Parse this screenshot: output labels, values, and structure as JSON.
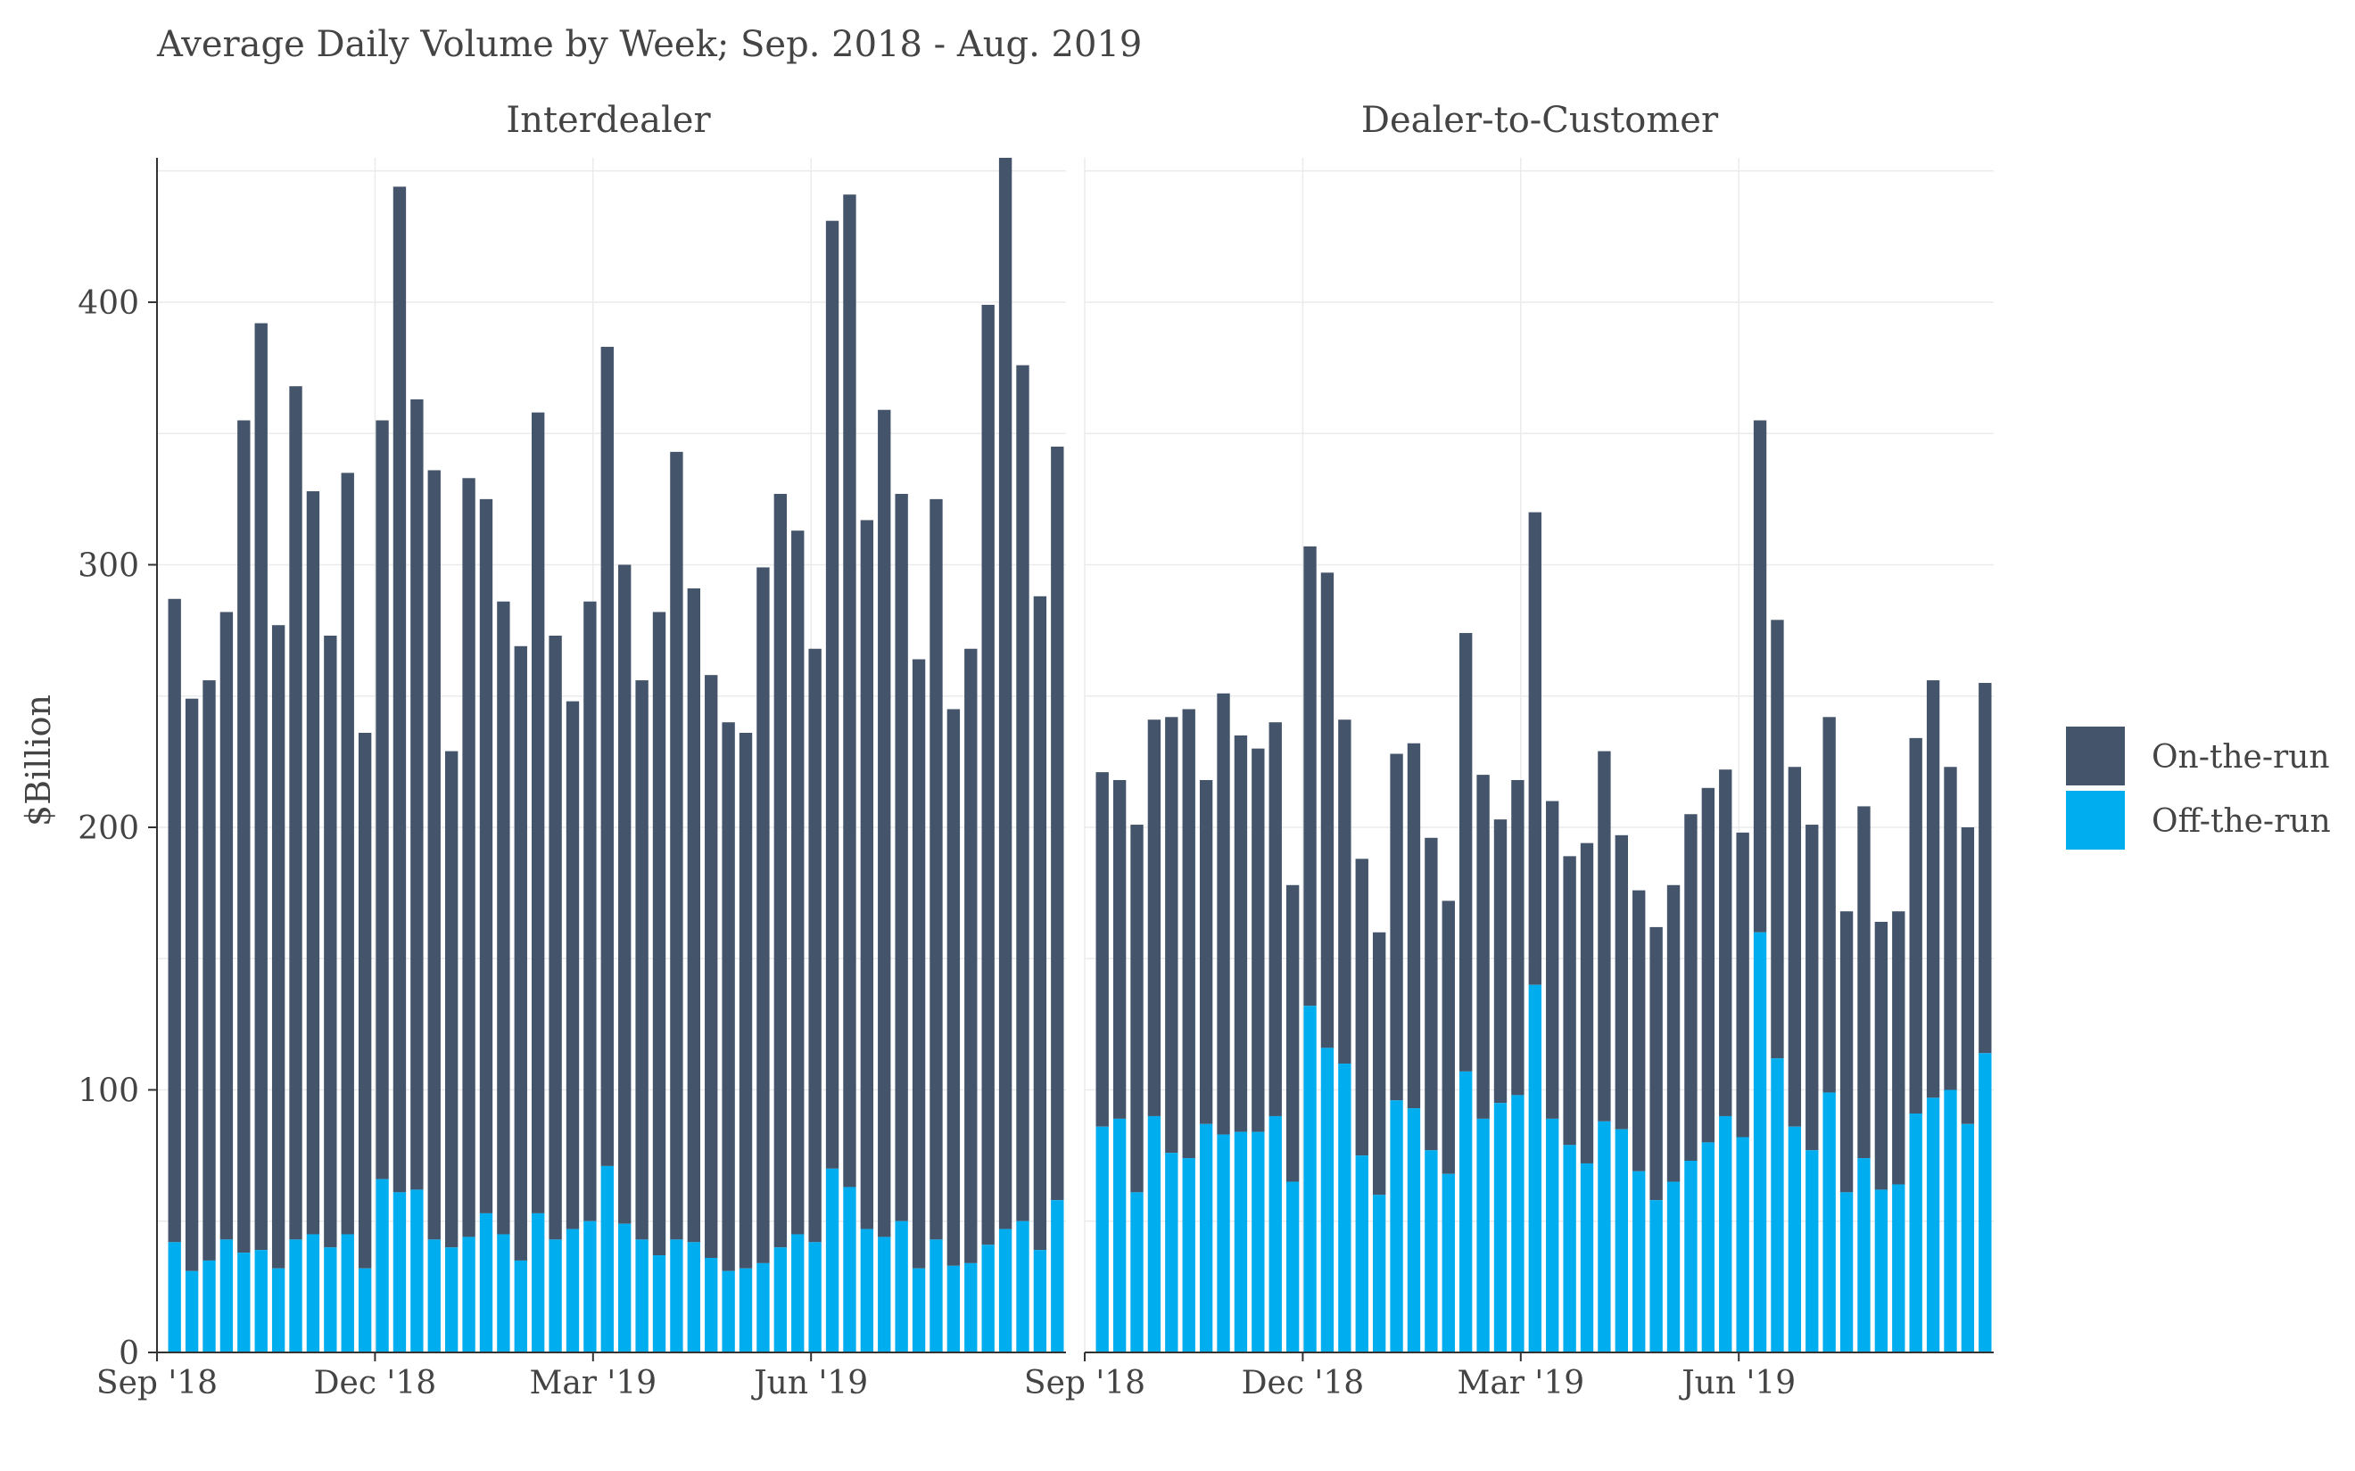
{
  "chart_data": {
    "type": "bar",
    "stacked": true,
    "title": "Average Daily Volume by Week; Sep. 2018 - Aug. 2019",
    "ylabel": "$Billion",
    "xlabel": "",
    "ylim": [
      0,
      455
    ],
    "y_ticks": [
      0,
      100,
      200,
      300,
      400
    ],
    "x_ticks": [
      "Sep '18",
      "Dec '18",
      "Mar '19",
      "Jun '19",
      "Sep '18",
      "Dec '18",
      "Mar '19",
      "Jun '19"
    ],
    "x_tick_weeks": [
      0,
      13,
      26,
      39
    ],
    "grid": true,
    "legend_position": "right",
    "colors": {
      "on_the_run": "#44546a",
      "off_the_run": "#00adef"
    },
    "series_names": [
      "On-the-run",
      "Off-the-run"
    ],
    "panels": [
      {
        "name": "Interdealer",
        "total": [
          287,
          249,
          256,
          282,
          355,
          392,
          277,
          368,
          328,
          273,
          335,
          236,
          355,
          444,
          363,
          336,
          229,
          333,
          325,
          286,
          269,
          358,
          273,
          248,
          286,
          383,
          300,
          256,
          282,
          343,
          291,
          258,
          240,
          236,
          299,
          327,
          313,
          268,
          431,
          441,
          317,
          359,
          327,
          264,
          325,
          245,
          268,
          399,
          455,
          376,
          288,
          345
        ],
        "off_the_run": [
          42,
          31,
          35,
          43,
          38,
          39,
          32,
          43,
          45,
          40,
          45,
          32,
          66,
          61,
          62,
          43,
          40,
          44,
          53,
          45,
          35,
          53,
          43,
          47,
          50,
          71,
          49,
          43,
          37,
          43,
          42,
          36,
          31,
          32,
          34,
          40,
          45,
          42,
          70,
          63,
          47,
          44,
          50,
          32,
          43,
          33,
          34,
          41,
          47,
          50,
          39,
          58
        ]
      },
      {
        "name": "Dealer-to-Customer",
        "total": [
          221,
          218,
          201,
          241,
          242,
          245,
          218,
          251,
          235,
          230,
          240,
          178,
          307,
          297,
          241,
          188,
          160,
          228,
          232,
          196,
          172,
          274,
          220,
          203,
          218,
          320,
          210,
          189,
          194,
          229,
          197,
          176,
          162,
          178,
          205,
          215,
          222,
          198,
          355,
          279,
          223,
          201,
          242,
          168,
          208,
          164,
          168,
          234,
          256,
          223,
          200,
          255
        ],
        "off_the_run": [
          86,
          89,
          61,
          90,
          76,
          74,
          87,
          83,
          84,
          84,
          90,
          65,
          132,
          116,
          110,
          75,
          60,
          96,
          93,
          77,
          68,
          107,
          89,
          95,
          98,
          140,
          89,
          79,
          72,
          88,
          85,
          69,
          58,
          65,
          73,
          80,
          90,
          82,
          160,
          112,
          86,
          77,
          99,
          61,
          74,
          62,
          64,
          91,
          97,
          100,
          87,
          114
        ]
      }
    ]
  }
}
